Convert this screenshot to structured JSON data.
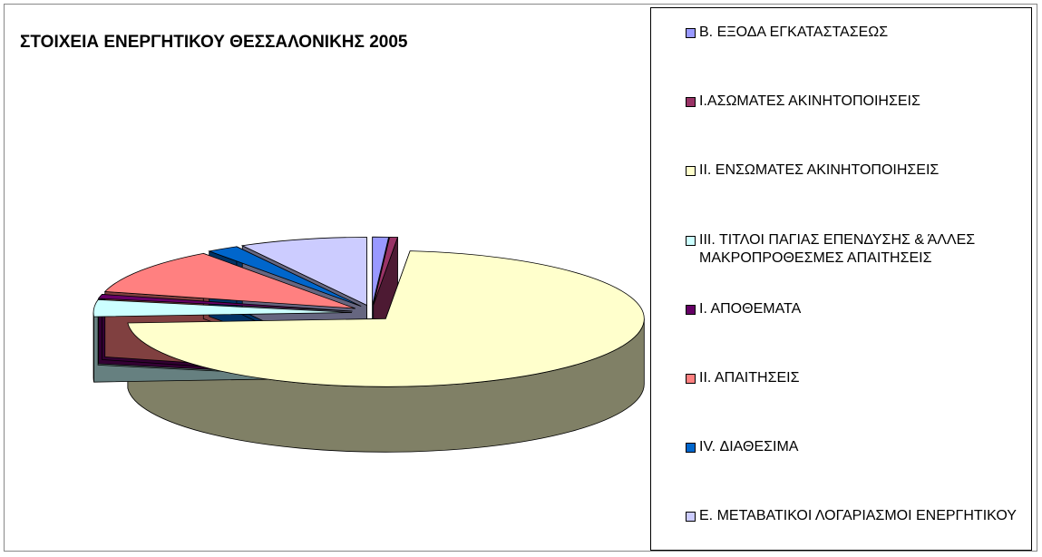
{
  "chart_data": {
    "type": "pie3d",
    "title": "ΣΤΟΙΧΕΙΑ ΕΝΕΡΓΗΤΙΚΟΥ ΘΕΣΣΑΛΟΝΙΚΗΣ 2005",
    "categories": [
      "Β. ΕΞΟΔΑ ΕΓΚΑΤΑΣΤΑΣΕΩΣ",
      "Ι.ΑΣΩΜΑΤΕΣ ΑΚΙΝΗΤΟΠΟΙΗΣΕΙΣ",
      "ΙΙ. ΕΝΣΩΜΑΤΕΣ ΑΚΙΝΗΤΟΠΟΙΗΣΕΙΣ",
      "ΙΙΙ. ΤΙΤΛΟΙ ΠΑΓΙΑΣ ΕΠΕΝΔΥΣΗΣ & ΆΛΛΕΣ ΜΑΚΡΟΠΡΟΘΕΣΜΕΣ ΑΠΑΙΤΗΣΕΙΣ",
      "Ι. ΑΠΟΘΕΜΑΤΑ",
      "ΙΙ. ΑΠΑΙΤΗΣΕΙΣ",
      "IV. ΔΙΑΘΕΣΙΜΑ",
      "Ε. ΜΕΤΑΒΑΤΙΚΟΙ ΛΟΓΑΡΙΑΣΜΟΙ ΕΝΕΡΓΗΤΙΚΟΥ"
    ],
    "values": [
      1,
      0.5,
      72.5,
      4,
      1,
      11,
      2,
      8
    ],
    "colors": [
      "#9999ff",
      "#993366",
      "#ffffcc",
      "#ccffff",
      "#660066",
      "#ff8080",
      "#0066cc",
      "#ccccff"
    ],
    "legend": "right"
  }
}
